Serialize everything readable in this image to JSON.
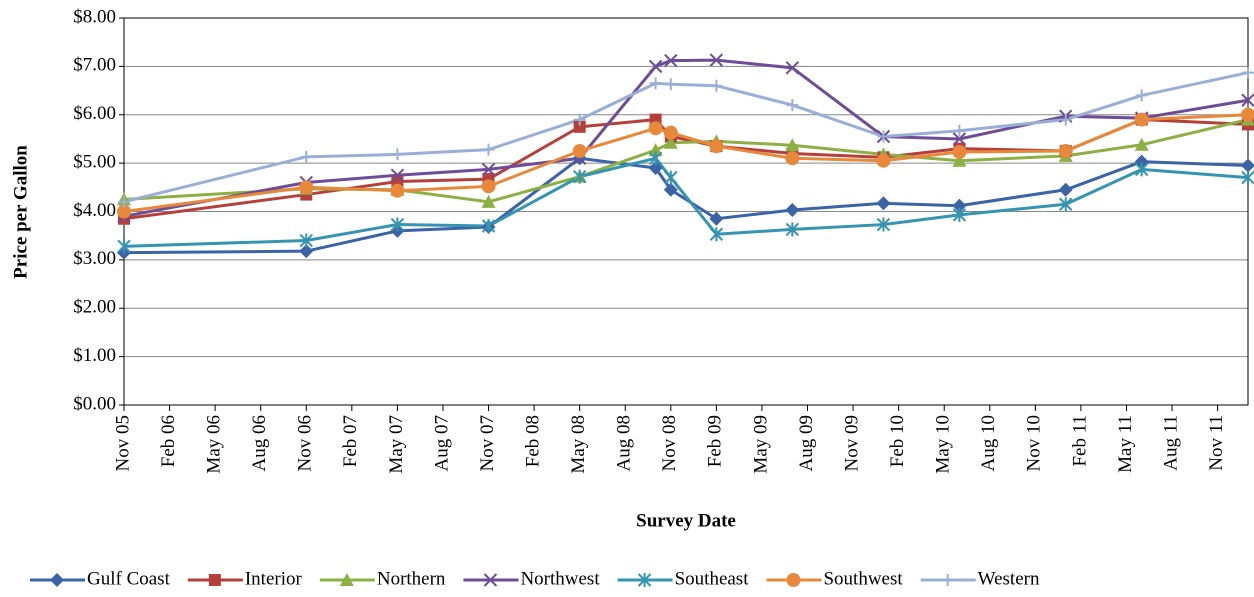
{
  "chart_data": {
    "type": "line",
    "ylabel": "Price per Gallon",
    "xlabel": "Survey Date",
    "grid": true,
    "legend": "bottom",
    "xlim": [
      "2005-11",
      "2012-01"
    ],
    "ylim": [
      0,
      8
    ],
    "yticks": [
      {
        "value": 0,
        "label": "$0.00"
      },
      {
        "value": 1,
        "label": "$1.00"
      },
      {
        "value": 2,
        "label": "$2.00"
      },
      {
        "value": 3,
        "label": "$3.00"
      },
      {
        "value": 4,
        "label": "$4.00"
      },
      {
        "value": 5,
        "label": "$5.00"
      },
      {
        "value": 6,
        "label": "$6.00"
      },
      {
        "value": 7,
        "label": "$7.00"
      },
      {
        "value": 8,
        "label": "$8.00"
      }
    ],
    "xticks": [
      {
        "value": "2005-11",
        "label": "Nov 05"
      },
      {
        "value": "2006-02",
        "label": "Feb 06"
      },
      {
        "value": "2006-05",
        "label": "May 06"
      },
      {
        "value": "2006-08",
        "label": "Aug 06"
      },
      {
        "value": "2006-11",
        "label": "Nov 06"
      },
      {
        "value": "2007-02",
        "label": "Feb 07"
      },
      {
        "value": "2007-05",
        "label": "May 07"
      },
      {
        "value": "2007-08",
        "label": "Aug 07"
      },
      {
        "value": "2007-11",
        "label": "Nov 07"
      },
      {
        "value": "2008-02",
        "label": "Feb 08"
      },
      {
        "value": "2008-05",
        "label": "May 08"
      },
      {
        "value": "2008-08",
        "label": "Aug 08"
      },
      {
        "value": "2008-11",
        "label": "Nov 08"
      },
      {
        "value": "2009-02",
        "label": "Feb 09"
      },
      {
        "value": "2009-05",
        "label": "May 09"
      },
      {
        "value": "2009-08",
        "label": "Aug 09"
      },
      {
        "value": "2009-11",
        "label": "Nov 09"
      },
      {
        "value": "2010-02",
        "label": "Feb 10"
      },
      {
        "value": "2010-05",
        "label": "May 10"
      },
      {
        "value": "2010-08",
        "label": "Aug 10"
      },
      {
        "value": "2010-11",
        "label": "Nov 10"
      },
      {
        "value": "2011-02",
        "label": "Feb 11"
      },
      {
        "value": "2011-05",
        "label": "May 11"
      },
      {
        "value": "2011-08",
        "label": "Aug 11"
      },
      {
        "value": "2011-11",
        "label": "Nov 11"
      }
    ],
    "x": [
      "2005-11",
      "2006-11",
      "2007-05",
      "2007-11",
      "2008-05",
      "2008-10",
      "2008-11",
      "2009-02",
      "2009-07",
      "2010-01",
      "2010-06",
      "2011-01",
      "2011-06",
      "2012-01"
    ],
    "series": [
      {
        "name": "Gulf Coast",
        "color": "#3b63a6",
        "marker": "diamond",
        "values": [
          3.15,
          3.18,
          3.6,
          3.68,
          5.1,
          4.9,
          4.45,
          3.85,
          4.03,
          4.17,
          4.12,
          4.45,
          5.03,
          4.95
        ]
      },
      {
        "name": "Interior",
        "color": "#b5403b",
        "marker": "square",
        "values": [
          3.85,
          4.35,
          4.62,
          4.67,
          5.75,
          5.9,
          5.55,
          5.35,
          5.2,
          5.12,
          5.3,
          5.25,
          5.9,
          5.8
        ]
      },
      {
        "name": "Northern",
        "color": "#8cb043",
        "marker": "triangle",
        "values": [
          4.25,
          4.47,
          4.45,
          4.2,
          4.72,
          5.27,
          5.42,
          5.45,
          5.37,
          5.18,
          5.05,
          5.15,
          5.38,
          5.9
        ]
      },
      {
        "name": "Northwest",
        "color": "#6e4c96",
        "marker": "x",
        "values": [
          3.9,
          4.6,
          4.75,
          4.87,
          5.1,
          7.0,
          7.12,
          7.13,
          6.97,
          5.55,
          5.5,
          5.97,
          5.93,
          6.3
        ]
      },
      {
        "name": "Southeast",
        "color": "#3594b0",
        "marker": "star",
        "values": [
          3.28,
          3.4,
          3.73,
          3.7,
          4.72,
          5.1,
          4.7,
          3.53,
          3.63,
          3.73,
          3.93,
          4.15,
          4.87,
          4.7
        ]
      },
      {
        "name": "Southwest",
        "color": "#e8883a",
        "marker": "circle",
        "values": [
          4.0,
          4.5,
          4.43,
          4.52,
          5.25,
          5.72,
          5.63,
          5.35,
          5.1,
          5.05,
          5.23,
          5.25,
          5.9,
          6.0
        ]
      },
      {
        "name": "Western",
        "color": "#9aafd6",
        "marker": "plus",
        "values": [
          4.2,
          5.13,
          5.18,
          5.28,
          5.9,
          6.65,
          6.63,
          6.6,
          6.2,
          5.55,
          5.67,
          5.9,
          6.4,
          6.87
        ]
      }
    ]
  }
}
